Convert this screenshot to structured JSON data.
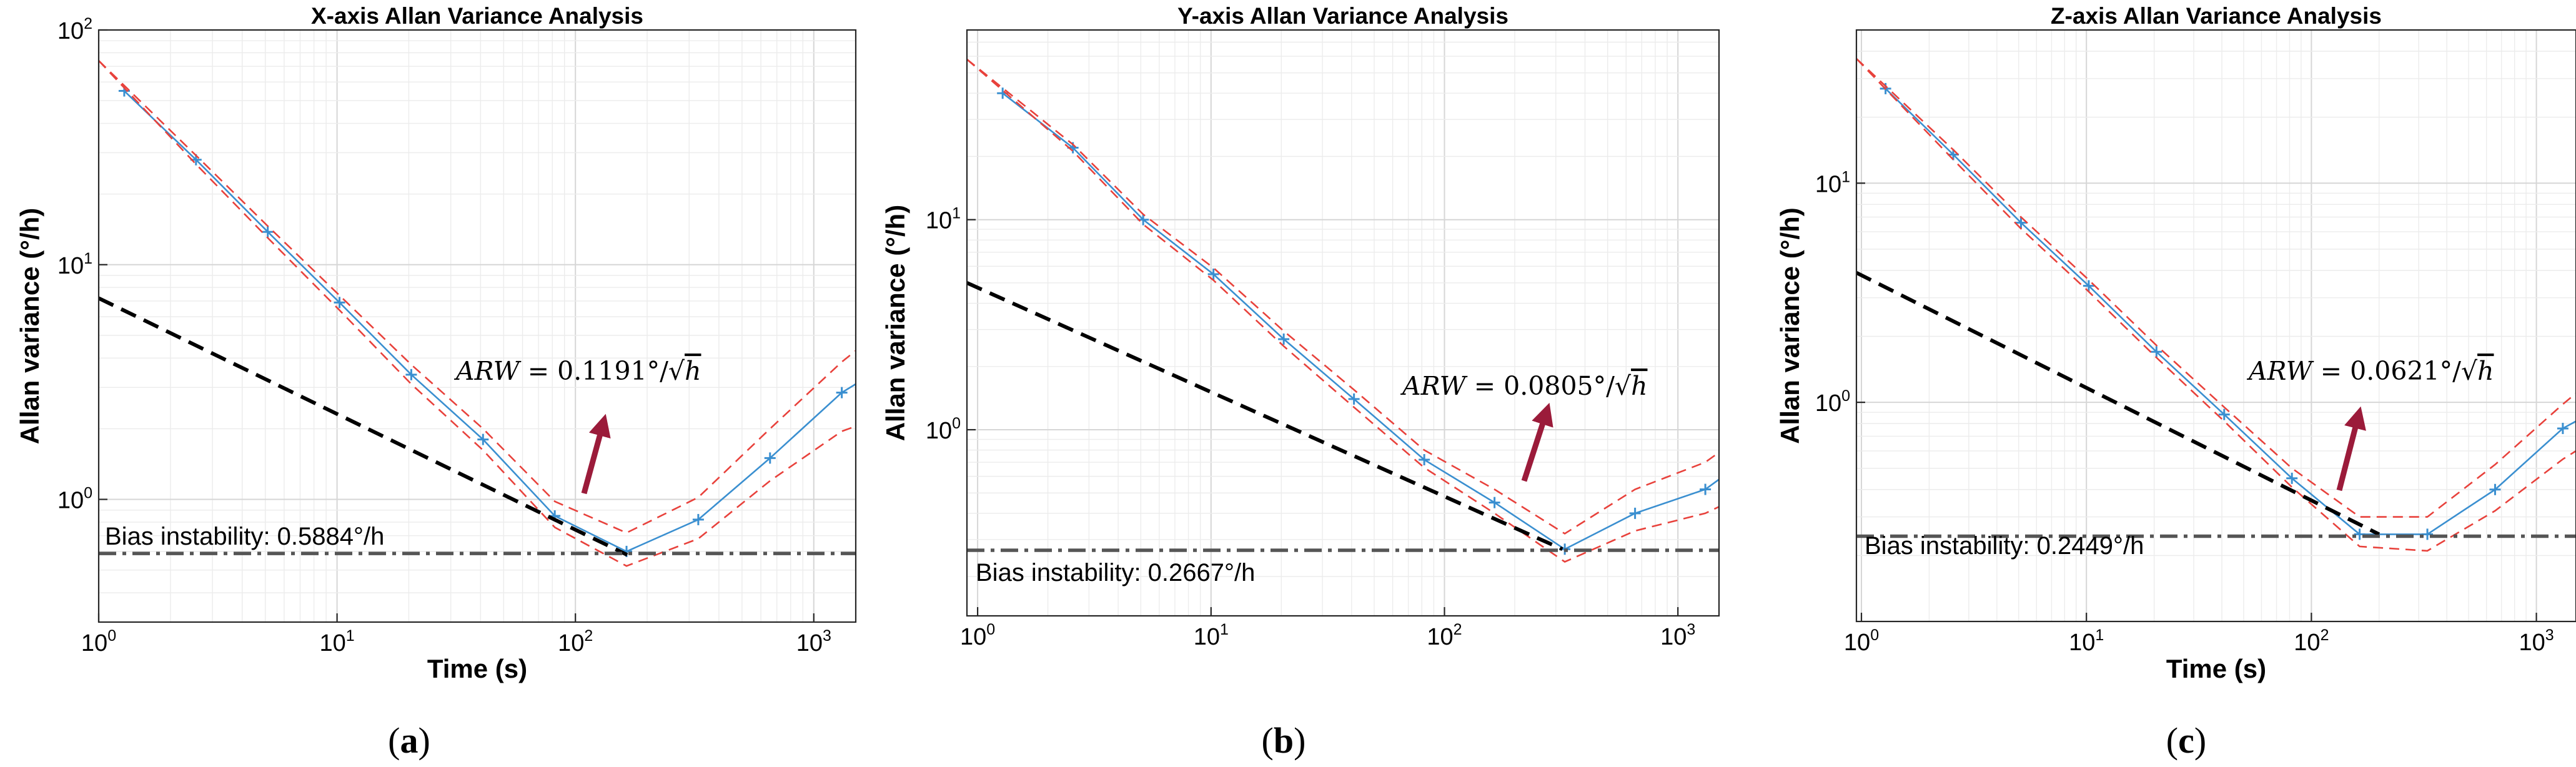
{
  "chart_data": [
    {
      "type": "line",
      "panel": "a",
      "title": "X-axis Allan Variance Analysis",
      "xlabel": "Time (s)",
      "ylabel": "Allan variance (°/h)",
      "xscale": "log",
      "yscale": "log",
      "xlim": [
        1,
        1500
      ],
      "ylim": [
        0.3,
        100
      ],
      "xticks": [
        1,
        10,
        100,
        1000
      ],
      "yticks": [
        1,
        10,
        100
      ],
      "grid": true,
      "series": [
        {
          "name": "Allan variance",
          "color": "#3a8fd0",
          "marker": "+",
          "x": [
            1.28,
            2.56,
            5.12,
            10.24,
            20.48,
            40.96,
            81.92,
            163.84,
            327.68,
            655.36,
            1310.72,
            1500
          ],
          "y": [
            55,
            28,
            13.8,
            6.9,
            3.4,
            1.8,
            0.85,
            0.6,
            0.82,
            1.5,
            2.85,
            3.1
          ]
        },
        {
          "name": "Upper bound",
          "color": "#e8413b",
          "dash": true,
          "x": [
            1,
            2.56,
            5.12,
            10.24,
            20.48,
            40.96,
            81.92,
            163.84,
            327.68,
            655.36,
            1310.72,
            1500
          ],
          "y": [
            74,
            29.2,
            14.6,
            7.4,
            3.75,
            2.0,
            0.98,
            0.72,
            1.02,
            2.0,
            3.85,
            4.3
          ]
        },
        {
          "name": "Lower bound",
          "color": "#e8413b",
          "dash": true,
          "x": [
            1,
            2.56,
            5.12,
            10.24,
            20.48,
            40.96,
            81.92,
            163.84,
            327.68,
            655.36,
            1310.72,
            1500
          ],
          "y": [
            74,
            26.8,
            13.0,
            6.4,
            3.1,
            1.62,
            0.76,
            0.52,
            0.68,
            1.2,
            1.95,
            2.05
          ]
        },
        {
          "name": "ARW slope",
          "color": "#000000",
          "dash": true,
          "x": [
            1,
            165
          ],
          "y": [
            7.2,
            0.58
          ]
        },
        {
          "name": "Bias instability",
          "color": "#555555",
          "dashdot": true,
          "x": [
            1,
            1500
          ],
          "y": [
            0.5884,
            0.5884
          ]
        }
      ],
      "annotations": {
        "arw_label": "ARW = 0.1191°/√h",
        "arw_lhs": "ARW",
        "arw_value": " = 0.1191°/",
        "bias_label": "Bias instability: 0.5884°/h",
        "panel_label_open": "(",
        "panel_letter": "a",
        "panel_label_close": ")"
      }
    },
    {
      "type": "line",
      "panel": "b",
      "title": "Y-axis Allan Variance Analysis",
      "xlabel": "",
      "ylabel": "Allan variance (°/h)",
      "xscale": "log",
      "yscale": "log",
      "xlim": [
        0.9,
        1500
      ],
      "ylim": [
        0.13,
        80
      ],
      "xticks": [
        1,
        10,
        100,
        1000
      ],
      "yticks": [
        1,
        10
      ],
      "grid": true,
      "series": [
        {
          "name": "Allan variance",
          "color": "#3a8fd0",
          "marker": "+",
          "x": [
            1.28,
            2.56,
            5.12,
            10.24,
            20.48,
            40.96,
            81.92,
            163.84,
            327.68,
            655.36,
            1310.72,
            1500
          ],
          "y": [
            40,
            22,
            10,
            5.5,
            2.7,
            1.4,
            0.72,
            0.45,
            0.27,
            0.4,
            0.52,
            0.58
          ]
        },
        {
          "name": "Upper bound",
          "color": "#e8413b",
          "dash": true,
          "x": [
            0.9,
            2.56,
            5.12,
            10.24,
            20.48,
            40.96,
            81.92,
            163.84,
            327.68,
            655.36,
            1310.72,
            1500
          ],
          "y": [
            58,
            22.8,
            10.6,
            5.9,
            2.95,
            1.55,
            0.8,
            0.52,
            0.32,
            0.52,
            0.7,
            0.78
          ]
        },
        {
          "name": "Lower bound",
          "color": "#e8413b",
          "dash": true,
          "x": [
            0.9,
            2.56,
            5.12,
            10.24,
            20.48,
            40.96,
            81.92,
            163.84,
            327.68,
            655.36,
            1310.72,
            1500
          ],
          "y": [
            58,
            21.2,
            9.5,
            5.15,
            2.5,
            1.28,
            0.66,
            0.4,
            0.235,
            0.33,
            0.4,
            0.43
          ]
        },
        {
          "name": "ARW slope",
          "color": "#000000",
          "dash": true,
          "x": [
            0.9,
            320
          ],
          "y": [
            5.0,
            0.27
          ]
        },
        {
          "name": "Bias instability",
          "color": "#555555",
          "dashdot": true,
          "x": [
            0.9,
            1500
          ],
          "y": [
            0.2667,
            0.2667
          ]
        }
      ],
      "annotations": {
        "arw_label": "ARW = 0.0805°/√h",
        "arw_lhs": "ARW",
        "arw_value": " = 0.0805°/",
        "bias_label": "Bias instability: 0.2667°/h",
        "panel_label_open": "(",
        "panel_letter": "b",
        "panel_label_close": ")"
      }
    },
    {
      "type": "line",
      "panel": "c",
      "title": "Z-axis Allan Variance Analysis",
      "xlabel": "Time (s)",
      "ylabel": "Allan variance (°/h)",
      "xscale": "log",
      "yscale": "log",
      "xlim": [
        0.95,
        1500
      ],
      "ylim": [
        0.1,
        50
      ],
      "xticks": [
        1,
        10,
        100,
        1000
      ],
      "yticks": [
        1,
        10
      ],
      "grid": true,
      "series": [
        {
          "name": "Allan variance",
          "color": "#3a8fd0",
          "marker": "+",
          "x": [
            1.28,
            2.56,
            5.12,
            10.24,
            20.48,
            40.96,
            81.92,
            163.84,
            327.68,
            655.36,
            1310.72,
            1500
          ],
          "y": [
            27,
            13.5,
            6.6,
            3.4,
            1.7,
            0.88,
            0.45,
            0.25,
            0.25,
            0.4,
            0.76,
            0.82
          ]
        },
        {
          "name": "Upper bound",
          "color": "#e8413b",
          "dash": true,
          "x": [
            0.95,
            2.56,
            5.12,
            10.24,
            20.48,
            40.96,
            81.92,
            163.84,
            327.68,
            655.36,
            1310.72,
            1500
          ],
          "y": [
            37,
            14.2,
            7.0,
            3.62,
            1.82,
            0.95,
            0.5,
            0.3,
            0.3,
            0.52,
            0.98,
            1.1
          ]
        },
        {
          "name": "Lower bound",
          "color": "#e8413b",
          "dash": true,
          "x": [
            0.95,
            2.56,
            5.12,
            10.24,
            20.48,
            40.96,
            81.92,
            163.84,
            327.68,
            655.36,
            1310.72,
            1500
          ],
          "y": [
            37,
            12.8,
            6.2,
            3.2,
            1.6,
            0.82,
            0.41,
            0.22,
            0.21,
            0.32,
            0.55,
            0.6
          ]
        },
        {
          "name": "ARW slope",
          "color": "#000000",
          "dash": true,
          "x": [
            0.95,
            200
          ],
          "y": [
            3.9,
            0.25
          ]
        },
        {
          "name": "Bias instability",
          "color": "#555555",
          "dashdot": true,
          "x": [
            0.95,
            1500
          ],
          "y": [
            0.2449,
            0.2449
          ]
        }
      ],
      "annotations": {
        "arw_label": "ARW = 0.0621°/√h",
        "arw_lhs": "ARW",
        "arw_value": " = 0.0621°/",
        "bias_label": "Bias instability: 0.2449°/h",
        "panel_label_open": "(",
        "panel_letter": "c",
        "panel_label_close": ")"
      }
    }
  ],
  "arrow_color": "#9b1b3a",
  "sqrt_h": "h"
}
